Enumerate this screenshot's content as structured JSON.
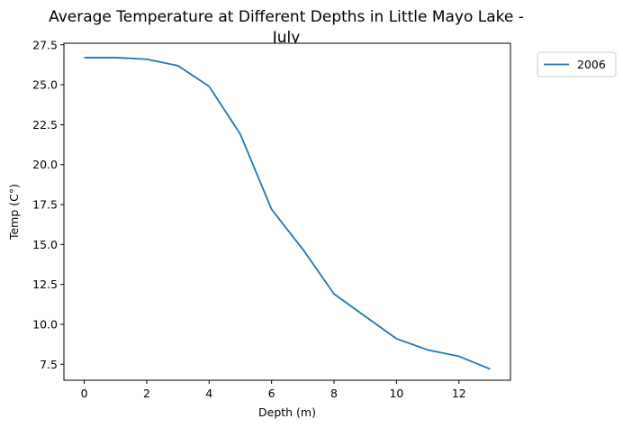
{
  "chart_data": {
    "type": "line",
    "title_line1": "Average Temperature at Different Depths in Little Mayo Lake -",
    "title_line2": "July",
    "xlabel": "Depth (m)",
    "ylabel": "Temp (C°)",
    "xlim": [
      -0.65,
      13.65
    ],
    "ylim": [
      6.5,
      27.6
    ],
    "xticks": [
      0,
      2,
      4,
      6,
      8,
      10,
      12
    ],
    "xtick_labels": [
      "0",
      "2",
      "4",
      "6",
      "8",
      "10",
      "12"
    ],
    "yticks": [
      7.5,
      10.0,
      12.5,
      15.0,
      17.5,
      20.0,
      22.5,
      25.0,
      27.5
    ],
    "ytick_labels": [
      "7.5",
      "10.0",
      "12.5",
      "15.0",
      "17.5",
      "20.0",
      "22.5",
      "25.0",
      "27.5"
    ],
    "grid": false,
    "legend_position": "outside-top-right",
    "series": [
      {
        "name": "2006",
        "color": "#1f77b4",
        "x": [
          0,
          1,
          2,
          3,
          4,
          5,
          6,
          7,
          8,
          9,
          10,
          11,
          12,
          13
        ],
        "y": [
          26.7,
          26.7,
          26.6,
          26.2,
          24.9,
          21.9,
          17.2,
          14.7,
          11.9,
          10.5,
          9.1,
          8.4,
          8.0,
          7.2
        ]
      }
    ]
  }
}
